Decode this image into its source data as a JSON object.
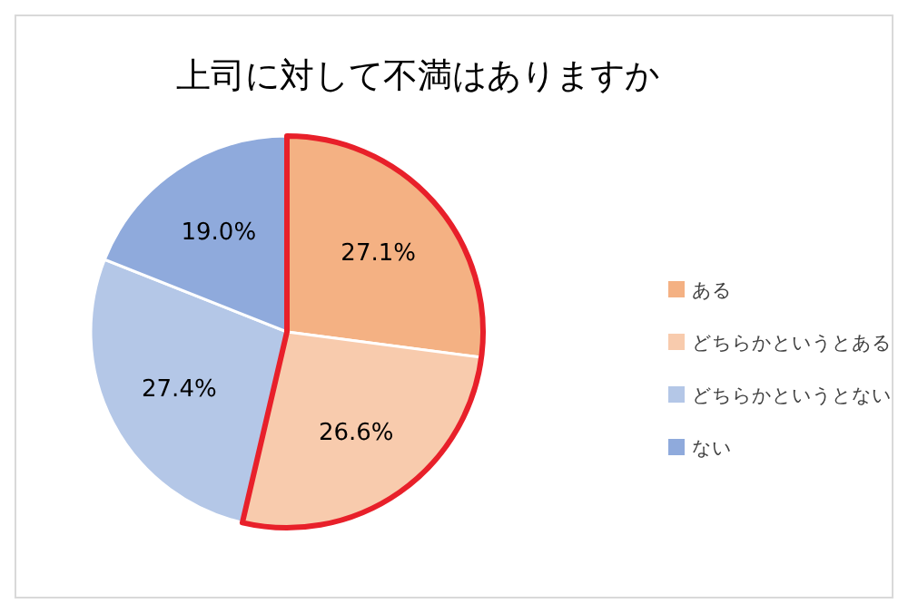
{
  "chart_data": {
    "type": "pie",
    "title": "上司に対して不満はありますか",
    "categories": [
      "ある",
      "どちらかというとある",
      "どちらかというとない",
      "ない"
    ],
    "values": [
      27.1,
      26.6,
      27.4,
      19.0
    ],
    "colors": [
      "#f4b183",
      "#f8cbad",
      "#b4c7e7",
      "#8faadc"
    ],
    "value_labels": [
      "27.1%",
      "26.6%",
      "27.4%",
      "19.0%"
    ],
    "legend": "right"
  }
}
